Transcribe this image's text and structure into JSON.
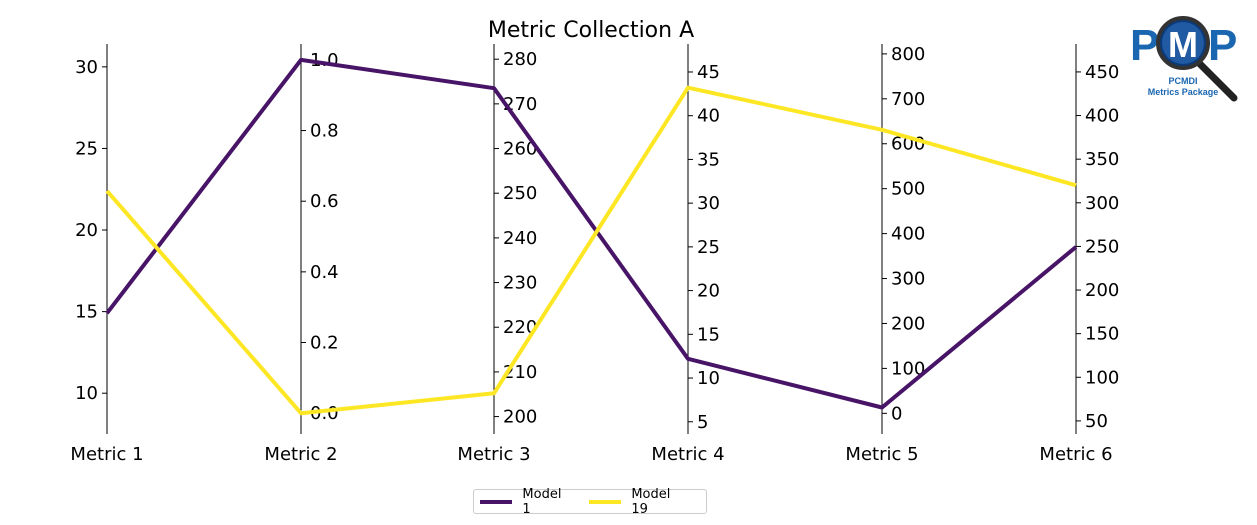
{
  "chart_data": {
    "type": "parallel-coordinates",
    "title": "Metric Collection A",
    "axes": [
      {
        "label": "Metric 1",
        "range": [
          7.5,
          31.4
        ],
        "ticks": [
          10,
          15,
          20,
          25,
          30
        ],
        "decimals": 0
      },
      {
        "label": "Metric 2",
        "range": [
          -0.059,
          1.045
        ],
        "ticks": [
          0.0,
          0.2,
          0.4,
          0.6,
          0.8,
          1.0
        ],
        "decimals": 1
      },
      {
        "label": "Metric 3",
        "range": [
          196.1,
          283.4
        ],
        "ticks": [
          200,
          210,
          220,
          230,
          240,
          250,
          260,
          270,
          280
        ],
        "decimals": 0
      },
      {
        "label": "Metric 4",
        "range": [
          3.6,
          48.2
        ],
        "ticks": [
          5,
          10,
          15,
          20,
          25,
          30,
          35,
          40,
          45
        ],
        "decimals": 0
      },
      {
        "label": "Metric 5",
        "range": [
          -46,
          822
        ],
        "ticks": [
          0,
          100,
          200,
          300,
          400,
          500,
          600,
          700,
          800
        ],
        "decimals": 0
      },
      {
        "label": "Metric 6",
        "range": [
          35,
          482
        ],
        "ticks": [
          50,
          100,
          150,
          200,
          250,
          300,
          350,
          400,
          450
        ],
        "decimals": 0
      }
    ],
    "series": [
      {
        "name": "Model 1",
        "color": "#481467",
        "values": [
          14.9,
          1.0,
          273.5,
          12.2,
          13,
          249.5
        ]
      },
      {
        "name": "Model 19",
        "color": "#fde725",
        "values": [
          22.4,
          0.0,
          205.2,
          43.2,
          631,
          320
        ]
      }
    ],
    "legend_position": "bottom-center",
    "grid": false
  },
  "logo": {
    "text": "PMP",
    "subtitle_1": "PCMDI",
    "subtitle_2": "Metrics Package"
  }
}
